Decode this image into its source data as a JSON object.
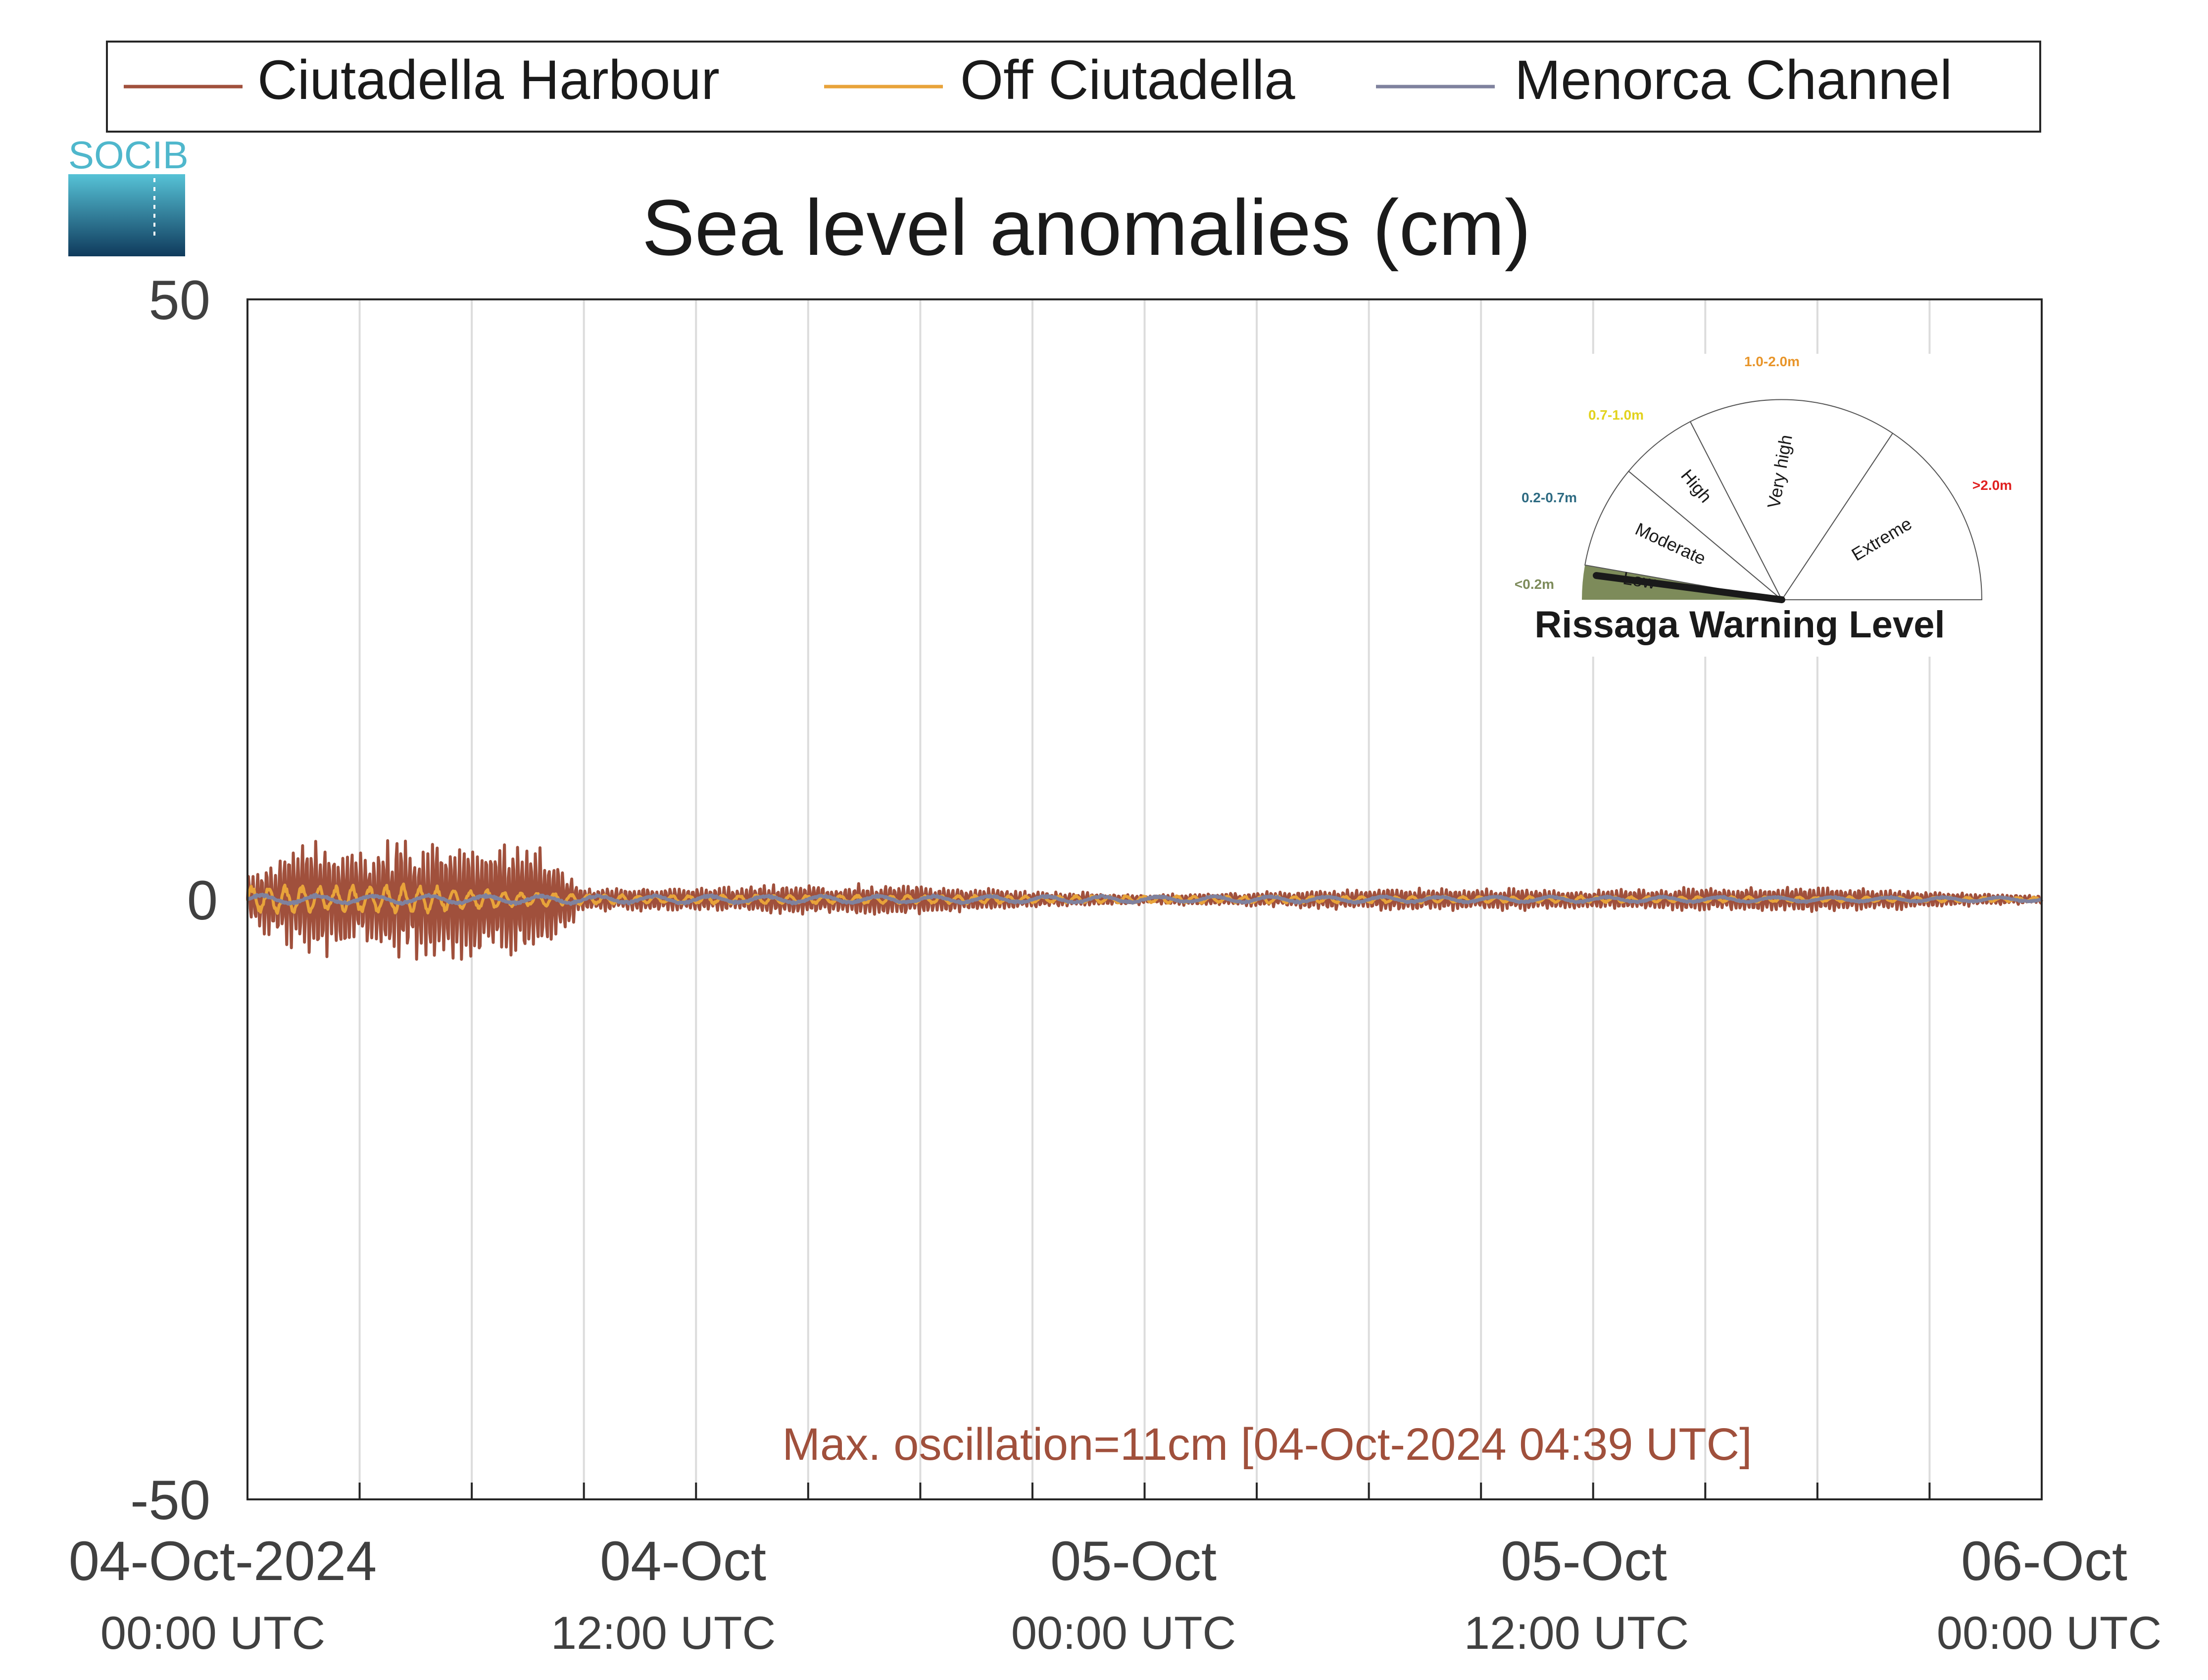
{
  "chart_data": {
    "type": "line",
    "title": "Sea level anomalies (cm)",
    "xlabel": "",
    "ylabel": "",
    "ylim": [
      -50,
      50
    ],
    "yticks": [
      -50,
      0,
      50
    ],
    "xlim": [
      "2024-10-04T00:00Z",
      "2024-10-06T00:00Z"
    ],
    "xticks": [
      {
        "line1": "04-Oct-2024",
        "line2": "00:00 UTC"
      },
      {
        "line1": "04-Oct",
        "line2": "12:00 UTC"
      },
      {
        "line1": "05-Oct",
        "line2": "00:00 UTC"
      },
      {
        "line1": "05-Oct",
        "line2": "12:00 UTC"
      },
      {
        "line1": "06-Oct",
        "line2": "00:00 UTC"
      }
    ],
    "grid": "vertical, every 3 hours",
    "legend_position": "top",
    "series": [
      {
        "name": "Ciutadella Harbour",
        "color": "#a0503c",
        "envelope_amplitude_cm": [
          {
            "time": "2024-10-04T00:00Z",
            "amplitude": 2
          },
          {
            "time": "2024-10-04T01:00Z",
            "amplitude": 4
          },
          {
            "time": "2024-10-04T02:00Z",
            "amplitude": 5
          },
          {
            "time": "2024-10-04T03:00Z",
            "amplitude": 4
          },
          {
            "time": "2024-10-04T04:00Z",
            "amplitude": 5
          },
          {
            "time": "2024-10-04T04:39Z",
            "amplitude": 5.5
          },
          {
            "time": "2024-10-04T06:00Z",
            "amplitude": 5
          },
          {
            "time": "2024-10-04T07:00Z",
            "amplitude": 5
          },
          {
            "time": "2024-10-04T08:00Z",
            "amplitude": 4
          },
          {
            "time": "2024-10-04T09:00Z",
            "amplitude": 1
          },
          {
            "time": "2024-10-04T12:00Z",
            "amplitude": 1
          },
          {
            "time": "2024-10-04T15:00Z",
            "amplitude": 1.3
          },
          {
            "time": "2024-10-04T18:00Z",
            "amplitude": 1.2
          },
          {
            "time": "2024-10-04T21:00Z",
            "amplitude": 0.7
          },
          {
            "time": "2024-10-05T00:00Z",
            "amplitude": 0.4
          },
          {
            "time": "2024-10-05T03:00Z",
            "amplitude": 0.6
          },
          {
            "time": "2024-10-05T06:00Z",
            "amplitude": 0.9
          },
          {
            "time": "2024-10-05T09:00Z",
            "amplitude": 0.9
          },
          {
            "time": "2024-10-05T12:00Z",
            "amplitude": 0.8
          },
          {
            "time": "2024-10-05T15:00Z",
            "amplitude": 1
          },
          {
            "time": "2024-10-05T18:00Z",
            "amplitude": 1.1
          },
          {
            "time": "2024-10-05T21:00Z",
            "amplitude": 0.7
          },
          {
            "time": "2024-10-06T00:00Z",
            "amplitude": 0.4
          }
        ]
      },
      {
        "name": "Off Ciutadella",
        "color": "#e8a33a",
        "envelope_amplitude_cm": [
          {
            "time": "2024-10-04T00:00Z",
            "amplitude": 1.2
          },
          {
            "time": "2024-10-04T04:00Z",
            "amplitude": 1.2
          },
          {
            "time": "2024-10-04T09:00Z",
            "amplitude": 0.4
          },
          {
            "time": "2024-10-06T00:00Z",
            "amplitude": 0.2
          }
        ]
      },
      {
        "name": "Menorca Channel",
        "color": "#7f829e",
        "envelope_amplitude_cm": [
          {
            "time": "2024-10-04T00:00Z",
            "amplitude": 0.4
          },
          {
            "time": "2024-10-06T00:00Z",
            "amplitude": 0.2
          }
        ]
      }
    ],
    "annotation": {
      "text": "Max. oscillation=11cm [04-Oct-2024 04:39 UTC]",
      "value_cm": 11,
      "time": "2024-10-04T04:39Z",
      "color": "#a0503c"
    }
  },
  "logo": {
    "text": "SOCIB"
  },
  "gauge": {
    "title": "Rissaga Warning Level",
    "current_level": "Low",
    "levels": [
      {
        "name": "Low",
        "range": "<0.2m",
        "color": "#7d8b5a"
      },
      {
        "name": "Moderate",
        "range": "0.2-0.7m",
        "color": "#2e6b82"
      },
      {
        "name": "High",
        "range": "0.7-1.0m",
        "color": "#e2d21d"
      },
      {
        "name": "Very high",
        "range": "1.0-2.0m",
        "color": "#e8952a"
      },
      {
        "name": "Extreme",
        "range": ">2.0m",
        "color": "#e02020"
      }
    ]
  },
  "colors": {
    "axis": "#262626",
    "tick_text": "#404040",
    "grid": "#dcdcdc"
  }
}
